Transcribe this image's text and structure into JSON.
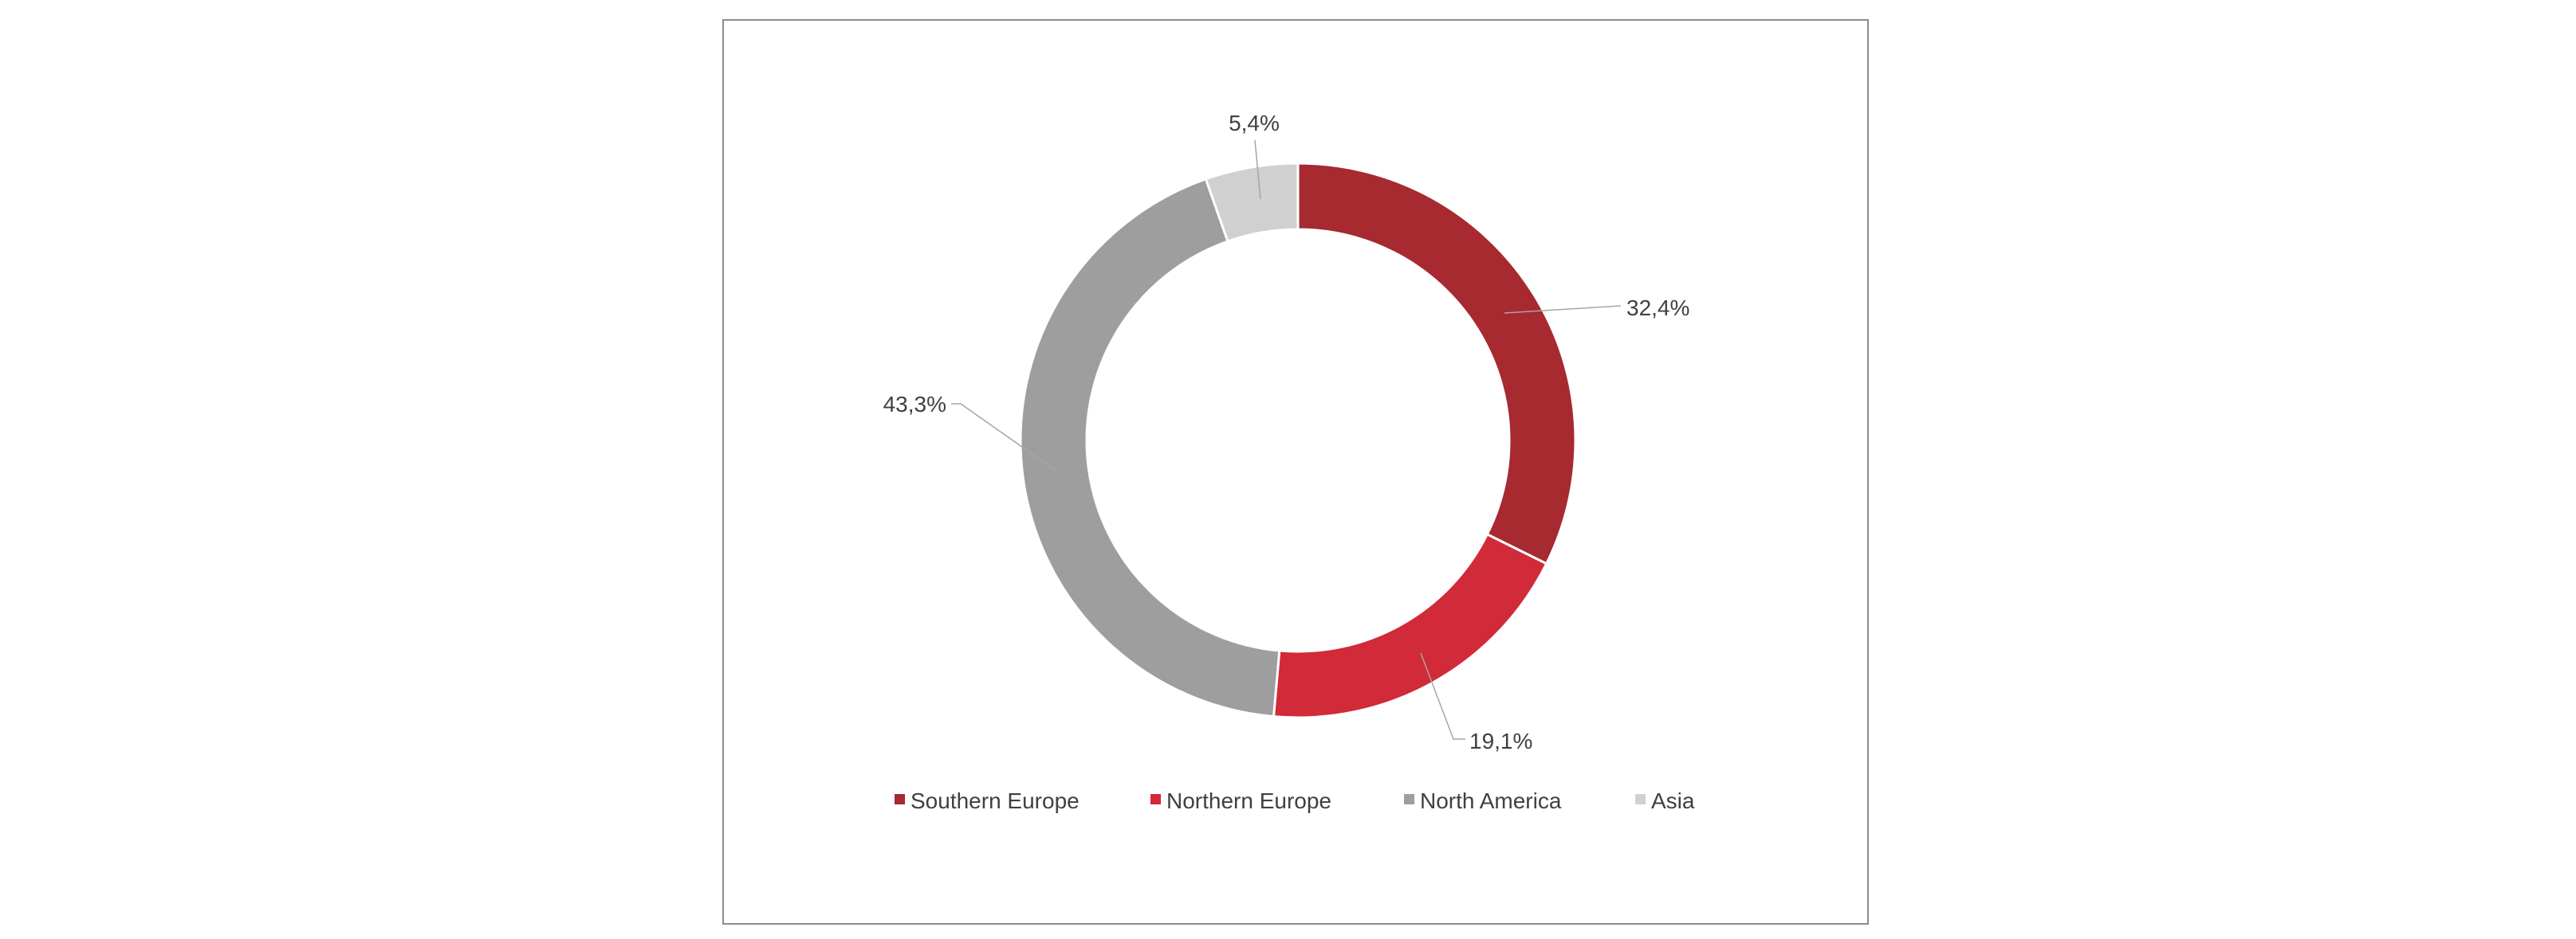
{
  "chart_data": {
    "type": "pie",
    "variant": "donut",
    "categories": [
      "Southern Europe",
      "Northern Europe",
      "North America",
      "Asia"
    ],
    "values": [
      32.4,
      19.1,
      43.3,
      5.4
    ],
    "labels": [
      "32,4%",
      "19,1%",
      "43,3%",
      "5,4%"
    ],
    "colors": [
      "#A62A30",
      "#D12A38",
      "#9E9E9E",
      "#D0D0D0"
    ],
    "title": "",
    "legend_placement": "bottom",
    "start_angle": "12 o'clock",
    "direction": "clockwise"
  }
}
